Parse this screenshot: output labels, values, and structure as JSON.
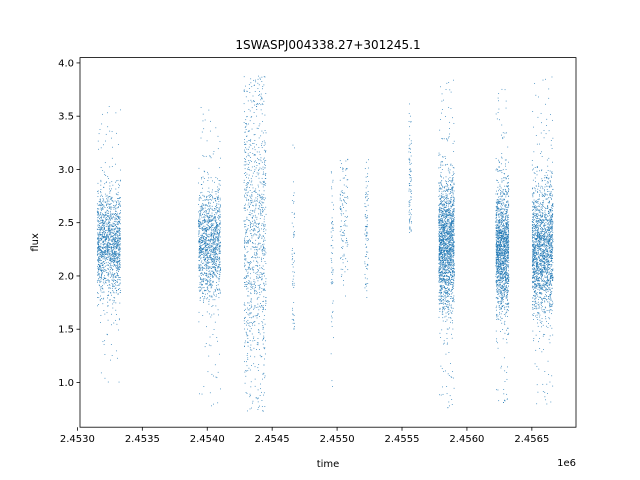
{
  "chart_data": {
    "type": "scatter",
    "title": "1SWASPJ004338.27+301245.1",
    "xlabel": "time",
    "ylabel": "flux",
    "x_offset_label": "1e6",
    "xlim": [
      2.45302,
      2.45684
    ],
    "ylim": [
      0.58,
      4.05
    ],
    "x_ticks": [
      2.453,
      2.4535,
      2.454,
      2.4545,
      2.455,
      2.4555,
      2.456,
      2.4565
    ],
    "x_tick_labels": [
      "2.4530",
      "2.4535",
      "2.4540",
      "2.4545",
      "2.4550",
      "2.4555",
      "2.4560",
      "2.4565"
    ],
    "y_ticks": [
      1.0,
      1.5,
      2.0,
      2.5,
      3.0,
      3.5,
      4.0
    ],
    "y_tick_labels": [
      "1.0",
      "1.5",
      "2.0",
      "2.5",
      "3.0",
      "3.5",
      "4.0"
    ],
    "marker_color": "#1f77b4",
    "grid": false,
    "clusters": [
      {
        "x_range": [
          2.45315,
          2.45333
        ],
        "y_center": 2.3,
        "y_spread": 0.25,
        "y_min": 1.0,
        "y_max": 3.6,
        "density": 1.0
      },
      {
        "x_range": [
          2.45393,
          2.4541
        ],
        "y_center": 2.3,
        "y_spread": 0.25,
        "y_min": 0.75,
        "y_max": 3.65,
        "density": 0.9
      },
      {
        "x_range": [
          2.45428,
          2.45445
        ],
        "y_center": 2.4,
        "y_spread": 0.7,
        "y_min": 0.73,
        "y_max": 3.88,
        "density": 0.7
      },
      {
        "x_range": [
          2.45465,
          2.45467
        ],
        "y_center": 2.2,
        "y_spread": 0.6,
        "y_min": 1.5,
        "y_max": 3.4,
        "density": 0.04
      },
      {
        "x_range": [
          2.45495,
          2.45497
        ],
        "y_center": 2.3,
        "y_spread": 0.5,
        "y_min": 0.85,
        "y_max": 3.1,
        "density": 0.04
      },
      {
        "x_range": [
          2.45502,
          2.45508
        ],
        "y_center": 2.6,
        "y_spread": 0.35,
        "y_min": 1.75,
        "y_max": 3.15,
        "density": 0.08
      },
      {
        "x_range": [
          2.45521,
          2.45524
        ],
        "y_center": 2.45,
        "y_spread": 0.35,
        "y_min": 1.75,
        "y_max": 3.1,
        "density": 0.06
      },
      {
        "x_range": [
          2.45555,
          2.45557
        ],
        "y_center": 2.9,
        "y_spread": 0.35,
        "y_min": 2.4,
        "y_max": 3.7,
        "density": 0.06
      },
      {
        "x_range": [
          2.45578,
          2.4559
        ],
        "y_center": 2.3,
        "y_spread": 0.3,
        "y_min": 0.73,
        "y_max": 3.85,
        "density": 1.3
      },
      {
        "x_range": [
          2.45622,
          2.45632
        ],
        "y_center": 2.25,
        "y_spread": 0.3,
        "y_min": 0.78,
        "y_max": 3.85,
        "density": 1.1
      },
      {
        "x_range": [
          2.4565,
          2.45666
        ],
        "y_center": 2.25,
        "y_spread": 0.3,
        "y_min": 0.75,
        "y_max": 3.88,
        "density": 1.3
      }
    ]
  }
}
